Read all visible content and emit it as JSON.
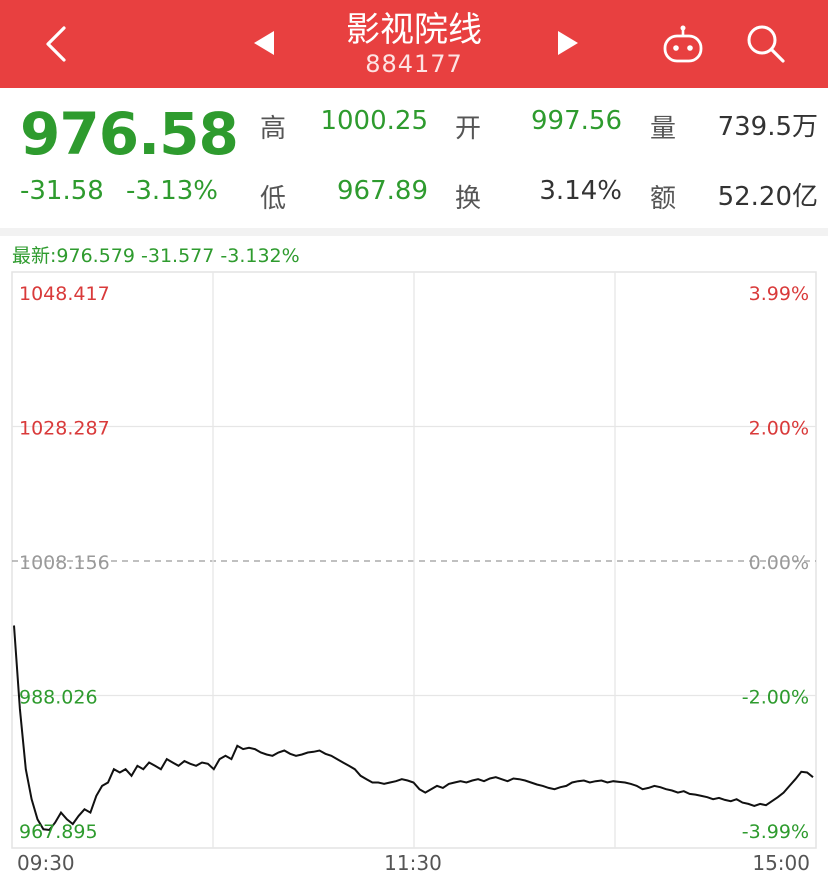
{
  "header": {
    "title": "影视院线",
    "code": "884177",
    "bg_color": "#e84040"
  },
  "quote": {
    "price": "976.58",
    "change": "-31.58",
    "change_pct": "-3.13%",
    "high_label": "高",
    "high_value": "1000.25",
    "low_label": "低",
    "low_value": "967.89",
    "open_label": "开",
    "open_value": "997.56",
    "turnover_label": "换",
    "turnover_value": "3.14%",
    "volume_label": "量",
    "volume_value": "739.5万",
    "amount_label": "额",
    "amount_value": "52.20亿",
    "down_color": "#2e9b2e",
    "up_color": "#d93a3a"
  },
  "latest": "最新:976.579  -31.577  -3.132%",
  "chart_data": {
    "type": "line",
    "y_left_ticks": [
      "1048.417",
      "1028.287",
      "1008.156",
      "988.026",
      "967.895"
    ],
    "y_right_ticks": [
      "3.99%",
      "2.00%",
      "0.00%",
      "-2.00%",
      "-3.99%"
    ],
    "x_ticks": [
      "09:30",
      "11:30",
      "15:00"
    ],
    "ylim": [
      967.895,
      1048.417
    ],
    "prev_close": 1008.156,
    "series": [
      {
        "values": [
          998.5,
          986.0,
          977.0,
          972.5,
          969.5,
          968.0,
          967.9,
          969.0,
          970.5,
          969.5,
          968.8,
          970.0,
          971.0,
          970.5,
          973.0,
          974.5,
          975.0,
          977.0,
          976.5,
          977.0,
          976.0,
          977.5,
          977.0,
          978.0,
          977.5,
          977.0,
          978.5,
          978.0,
          977.5,
          978.2,
          977.8,
          977.5,
          978.0,
          977.8,
          977.0,
          978.5,
          979.0,
          978.5,
          980.5,
          980.0,
          980.2,
          980.0,
          979.5,
          979.2,
          979.0,
          979.5,
          979.8,
          979.3,
          979.0,
          979.2,
          979.5,
          979.6,
          979.8,
          979.3,
          979.0,
          978.5,
          978.0,
          977.5,
          977.0,
          976.0,
          975.5,
          975.0,
          975.0,
          974.8,
          975.0,
          975.2,
          975.5,
          975.3,
          975.0,
          974.0,
          973.5,
          974.0,
          974.5,
          974.2,
          974.8,
          975.0,
          975.2,
          975.0,
          975.3,
          975.5,
          975.2,
          975.6,
          975.8,
          975.5,
          975.2,
          975.6,
          975.5,
          975.3,
          975.0,
          974.7,
          974.5,
          974.2,
          974.0,
          974.3,
          974.5,
          975.0,
          975.2,
          975.3,
          975.0,
          975.2,
          975.3,
          975.0,
          975.2,
          975.1,
          975.0,
          974.8,
          974.5,
          974.0,
          974.2,
          974.5,
          974.3,
          974.0,
          973.8,
          973.5,
          973.7,
          973.3,
          973.2,
          973.0,
          972.8,
          972.5,
          972.7,
          972.4,
          972.2,
          972.5,
          972.0,
          971.8,
          971.5,
          971.8,
          971.6,
          972.2,
          972.8,
          973.5,
          974.5,
          975.5,
          976.6,
          976.5,
          975.8
        ]
      }
    ]
  }
}
